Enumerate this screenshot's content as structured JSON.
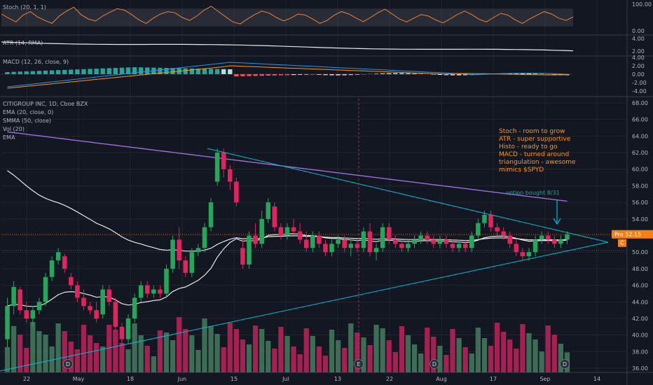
{
  "colors": {
    "background": "#131722",
    "grid": "#2a2e39",
    "up": "#26a65b",
    "down": "#e0245e",
    "vol_up": "#3d6e55",
    "vol_down": "#a32252",
    "ema20": "#e8e8e8",
    "smma50": "#9c6fd6",
    "trendline": "#00bcd4",
    "stoch": "#f08030",
    "atr": "#e8e8e8",
    "macd_line": "#2196f3",
    "signal_line": "#ff9800",
    "annotation": "#ff9800",
    "price_tag": "#f57f17"
  },
  "panes": {
    "stoch": {
      "label": "Stoch (20, 1, 1)",
      "ticks": [
        "100.00",
        "0.00"
      ],
      "values": [
        62,
        48,
        35,
        58,
        70,
        52,
        40,
        30,
        55,
        72,
        85,
        60,
        45,
        38,
        55,
        68,
        80,
        75,
        60,
        42,
        30,
        48,
        62,
        70,
        66,
        50,
        40,
        55,
        75,
        88,
        70,
        52,
        35,
        28,
        45,
        60,
        72,
        65,
        50,
        38,
        48,
        62,
        58,
        45,
        30,
        40,
        58,
        70,
        62,
        48,
        36,
        50,
        66,
        78,
        62,
        45,
        35,
        48,
        60,
        55,
        42,
        32,
        45,
        60,
        72,
        60,
        44,
        35,
        50,
        64,
        58,
        42,
        30,
        45,
        58,
        70,
        62,
        48,
        40,
        52
      ]
    },
    "atr": {
      "label": "ATR (14, RMA)",
      "ticks": [
        "4.00",
        "2.00"
      ]
    },
    "macd": {
      "label": "MACD (12, 26, close, 9)",
      "ticks": [
        "4.00",
        "2.00",
        "0.00",
        "-2.00",
        "-4.00"
      ]
    }
  },
  "chart_data": {
    "type": "candlestick",
    "title": "CITIGROUP INC, 1D, Cboe BZX",
    "indicators": [
      "EMA (20, close, 0)",
      "SMMA (50, close)",
      "Vol (20)",
      "EMA"
    ],
    "x_labels": [
      "22",
      "May",
      "18",
      "Jun",
      "15",
      "Jul",
      "13",
      "22",
      "Aug",
      "17",
      "Sep",
      "14"
    ],
    "y_ticks": [
      "68.00",
      "66.00",
      "64.00",
      "62.00",
      "60.00",
      "58.00",
      "56.00",
      "54.00",
      "52.00",
      "50.00",
      "48.00",
      "46.00",
      "44.00",
      "42.00",
      "40.00",
      "38.00",
      "36.00"
    ],
    "ylim": [
      35.5,
      68.5
    ],
    "last_price": "52.15",
    "price_tag_prefix": "Pre",
    "price_tag_suffix": "C",
    "candles": [
      {
        "o": 39.5,
        "h": 44.5,
        "l": 38.5,
        "c": 43.5
      },
      {
        "o": 43.5,
        "h": 46.5,
        "l": 42.5,
        "c": 45.8
      },
      {
        "o": 45.5,
        "h": 45.8,
        "l": 42.5,
        "c": 43.0
      },
      {
        "o": 43.0,
        "h": 44.0,
        "l": 41.5,
        "c": 42.0
      },
      {
        "o": 42.0,
        "h": 43.5,
        "l": 41.0,
        "c": 43.0
      },
      {
        "o": 43.0,
        "h": 44.5,
        "l": 42.5,
        "c": 44.0
      },
      {
        "o": 44.0,
        "h": 47.5,
        "l": 43.5,
        "c": 47.0
      },
      {
        "o": 47.0,
        "h": 49.5,
        "l": 46.5,
        "c": 49.0
      },
      {
        "o": 49.0,
        "h": 50.5,
        "l": 48.5,
        "c": 50.0
      },
      {
        "o": 49.5,
        "h": 49.8,
        "l": 47.5,
        "c": 48.0
      },
      {
        "o": 47.0,
        "h": 47.5,
        "l": 45.5,
        "c": 46.0
      },
      {
        "o": 46.0,
        "h": 46.5,
        "l": 44.0,
        "c": 44.5
      },
      {
        "o": 44.5,
        "h": 45.5,
        "l": 43.0,
        "c": 43.5
      },
      {
        "o": 43.5,
        "h": 44.0,
        "l": 42.5,
        "c": 43.0
      },
      {
        "o": 43.0,
        "h": 44.0,
        "l": 41.5,
        "c": 42.0
      },
      {
        "o": 42.5,
        "h": 46.0,
        "l": 42.0,
        "c": 45.5
      },
      {
        "o": 45.5,
        "h": 46.0,
        "l": 43.5,
        "c": 44.0
      },
      {
        "o": 44.0,
        "h": 44.5,
        "l": 40.5,
        "c": 41.0
      },
      {
        "o": 41.0,
        "h": 41.5,
        "l": 38.8,
        "c": 39.5
      },
      {
        "o": 39.5,
        "h": 42.5,
        "l": 39.0,
        "c": 42.0
      },
      {
        "o": 42.0,
        "h": 45.0,
        "l": 41.5,
        "c": 44.5
      },
      {
        "o": 44.5,
        "h": 46.5,
        "l": 44.0,
        "c": 46.0
      },
      {
        "o": 46.0,
        "h": 46.5,
        "l": 44.5,
        "c": 45.0
      },
      {
        "o": 45.0,
        "h": 46.0,
        "l": 44.5,
        "c": 45.5
      },
      {
        "o": 45.5,
        "h": 46.0,
        "l": 44.5,
        "c": 45.0
      },
      {
        "o": 45.0,
        "h": 48.5,
        "l": 44.5,
        "c": 48.0
      },
      {
        "o": 48.0,
        "h": 52.0,
        "l": 47.5,
        "c": 51.5
      },
      {
        "o": 51.5,
        "h": 53.0,
        "l": 48.0,
        "c": 49.0
      },
      {
        "o": 49.0,
        "h": 49.5,
        "l": 47.0,
        "c": 47.5
      },
      {
        "o": 47.5,
        "h": 50.5,
        "l": 47.0,
        "c": 50.0
      },
      {
        "o": 50.0,
        "h": 51.0,
        "l": 49.5,
        "c": 50.5
      },
      {
        "o": 50.5,
        "h": 53.5,
        "l": 50.0,
        "c": 53.0
      },
      {
        "o": 53.0,
        "h": 56.5,
        "l": 52.5,
        "c": 56.0
      },
      {
        "o": 58.5,
        "h": 62.5,
        "l": 58.0,
        "c": 62.0
      },
      {
        "o": 62.0,
        "h": 62.5,
        "l": 59.0,
        "c": 60.0
      },
      {
        "o": 60.0,
        "h": 60.5,
        "l": 57.5,
        "c": 58.5
      },
      {
        "o": 58.5,
        "h": 59.0,
        "l": 55.5,
        "c": 56.0
      },
      {
        "o": 50.5,
        "h": 51.5,
        "l": 48.0,
        "c": 48.5
      },
      {
        "o": 48.5,
        "h": 52.5,
        "l": 48.0,
        "c": 52.0
      },
      {
        "o": 52.0,
        "h": 53.5,
        "l": 50.5,
        "c": 51.0
      },
      {
        "o": 51.0,
        "h": 55.0,
        "l": 50.5,
        "c": 54.0
      },
      {
        "o": 54.0,
        "h": 56.5,
        "l": 53.5,
        "c": 56.0
      },
      {
        "o": 55.5,
        "h": 56.0,
        "l": 52.5,
        "c": 53.0
      },
      {
        "o": 53.0,
        "h": 53.5,
        "l": 51.5,
        "c": 52.0
      },
      {
        "o": 52.0,
        "h": 53.5,
        "l": 51.5,
        "c": 53.0
      },
      {
        "o": 53.0,
        "h": 54.0,
        "l": 52.0,
        "c": 52.5
      },
      {
        "o": 52.5,
        "h": 53.5,
        "l": 51.0,
        "c": 51.5
      },
      {
        "o": 51.5,
        "h": 52.5,
        "l": 50.0,
        "c": 50.5
      },
      {
        "o": 50.5,
        "h": 52.5,
        "l": 50.0,
        "c": 52.0
      },
      {
        "o": 52.0,
        "h": 52.5,
        "l": 50.5,
        "c": 51.0
      },
      {
        "o": 51.0,
        "h": 51.5,
        "l": 49.5,
        "c": 50.0
      },
      {
        "o": 50.0,
        "h": 51.5,
        "l": 49.5,
        "c": 51.0
      },
      {
        "o": 51.0,
        "h": 52.0,
        "l": 50.5,
        "c": 51.5
      },
      {
        "o": 51.5,
        "h": 52.0,
        "l": 50.0,
        "c": 50.5
      },
      {
        "o": 50.5,
        "h": 51.5,
        "l": 49.5,
        "c": 51.0
      },
      {
        "o": 51.0,
        "h": 51.5,
        "l": 50.0,
        "c": 50.5
      },
      {
        "o": 50.5,
        "h": 53.0,
        "l": 50.0,
        "c": 52.5
      },
      {
        "o": 52.5,
        "h": 53.5,
        "l": 49.5,
        "c": 50.0
      },
      {
        "o": 50.0,
        "h": 51.0,
        "l": 49.0,
        "c": 50.5
      },
      {
        "o": 50.5,
        "h": 53.5,
        "l": 50.0,
        "c": 53.0
      },
      {
        "o": 53.0,
        "h": 53.5,
        "l": 51.0,
        "c": 51.5
      },
      {
        "o": 51.5,
        "h": 52.0,
        "l": 50.5,
        "c": 51.0
      },
      {
        "o": 51.0,
        "h": 51.5,
        "l": 50.0,
        "c": 50.5
      },
      {
        "o": 50.5,
        "h": 51.5,
        "l": 50.0,
        "c": 51.0
      },
      {
        "o": 51.0,
        "h": 52.0,
        "l": 50.5,
        "c": 51.5
      },
      {
        "o": 51.5,
        "h": 52.5,
        "l": 51.0,
        "c": 52.0
      },
      {
        "o": 52.0,
        "h": 52.5,
        "l": 51.0,
        "c": 51.5
      },
      {
        "o": 51.5,
        "h": 52.0,
        "l": 50.5,
        "c": 51.0
      },
      {
        "o": 51.0,
        "h": 52.0,
        "l": 50.5,
        "c": 51.5
      },
      {
        "o": 51.5,
        "h": 52.0,
        "l": 50.5,
        "c": 51.0
      },
      {
        "o": 51.0,
        "h": 51.5,
        "l": 50.0,
        "c": 50.5
      },
      {
        "o": 50.5,
        "h": 51.5,
        "l": 50.0,
        "c": 51.0
      },
      {
        "o": 51.0,
        "h": 51.5,
        "l": 50.0,
        "c": 50.5
      },
      {
        "o": 50.5,
        "h": 52.5,
        "l": 50.0,
        "c": 52.0
      },
      {
        "o": 52.0,
        "h": 54.0,
        "l": 51.5,
        "c": 53.5
      },
      {
        "o": 53.5,
        "h": 55.0,
        "l": 53.0,
        "c": 54.5
      },
      {
        "o": 54.5,
        "h": 55.0,
        "l": 52.5,
        "c": 53.0
      },
      {
        "o": 53.0,
        "h": 53.5,
        "l": 52.0,
        "c": 52.5
      },
      {
        "o": 52.5,
        "h": 53.0,
        "l": 51.5,
        "c": 52.0
      },
      {
        "o": 52.0,
        "h": 52.5,
        "l": 50.5,
        "c": 51.0
      },
      {
        "o": 51.0,
        "h": 51.5,
        "l": 49.5,
        "c": 50.0
      },
      {
        "o": 50.0,
        "h": 50.5,
        "l": 49.0,
        "c": 49.5
      },
      {
        "o": 49.5,
        "h": 50.5,
        "l": 49.0,
        "c": 50.0
      },
      {
        "o": 50.0,
        "h": 52.0,
        "l": 49.5,
        "c": 51.5
      },
      {
        "o": 51.5,
        "h": 52.5,
        "l": 51.0,
        "c": 52.0
      },
      {
        "o": 52.0,
        "h": 52.5,
        "l": 51.0,
        "c": 51.5
      },
      {
        "o": 51.5,
        "h": 52.0,
        "l": 50.5,
        "c": 51.0
      },
      {
        "o": 51.0,
        "h": 52.0,
        "l": 50.5,
        "c": 51.5
      },
      {
        "o": 51.5,
        "h": 52.5,
        "l": 51.0,
        "c": 52.15
      }
    ],
    "volume_axis": [
      "40.00",
      "38.00",
      "36.00"
    ],
    "annotations": {
      "thesis": [
        "Stoch - room to grow",
        "ATR - super supportive",
        "Histo - ready to go",
        "MACD - turned around",
        "triangulation - awesome",
        "mimics $SPYD"
      ],
      "option_note": "option bought 8/31"
    },
    "event_markers": [
      "D",
      "E",
      "D",
      "D"
    ]
  }
}
